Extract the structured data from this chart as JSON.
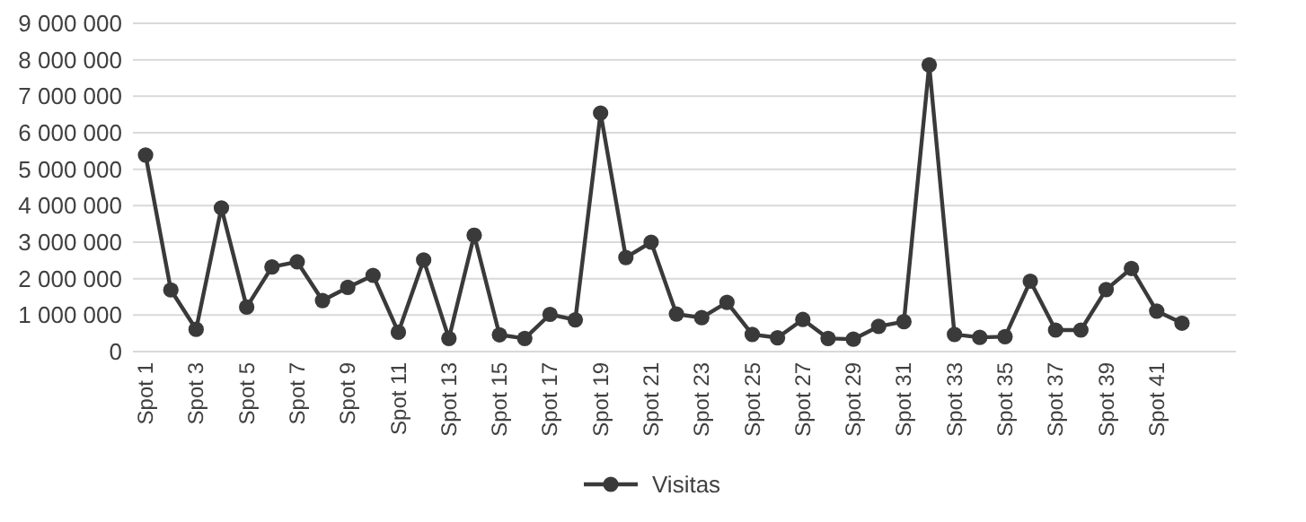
{
  "chart_data": {
    "type": "line",
    "categories": [
      "Spot 1",
      null,
      "Spot 3",
      null,
      "Spot 5",
      null,
      "Spot 7",
      null,
      "Spot 9",
      null,
      "Spot 11",
      null,
      "Spot 13",
      null,
      "Spot 15",
      null,
      "Spot 17",
      null,
      "Spot 19",
      null,
      "Spot 21",
      null,
      "Spot 23",
      null,
      "Spot 25",
      null,
      "Spot 27",
      null,
      "Spot 29",
      null,
      "Spot 31",
      null,
      "Spot 33",
      null,
      "Spot 35",
      null,
      "Spot 37",
      null,
      "Spot 39",
      null,
      "Spot 41",
      null
    ],
    "series": [
      {
        "name": "Visitas",
        "color": "#3a3a3a",
        "values": [
          5390000,
          1690000,
          610000,
          3940000,
          1220000,
          2320000,
          2460000,
          1400000,
          1760000,
          2090000,
          530000,
          2510000,
          360000,
          3190000,
          460000,
          360000,
          1020000,
          870000,
          6540000,
          2580000,
          3000000,
          1030000,
          930000,
          1350000,
          470000,
          380000,
          880000,
          360000,
          340000,
          690000,
          820000,
          7860000,
          470000,
          390000,
          410000,
          1930000,
          590000,
          590000,
          1700000,
          2280000,
          1110000,
          780000
        ]
      }
    ],
    "ylim": [
      0,
      9000000
    ],
    "yticks": [
      {
        "value": 0,
        "label": "0"
      },
      {
        "value": 1000000,
        "label": "1 000 000"
      },
      {
        "value": 2000000,
        "label": "2 000 000"
      },
      {
        "value": 3000000,
        "label": "3 000 000"
      },
      {
        "value": 4000000,
        "label": "4 000 000"
      },
      {
        "value": 5000000,
        "label": "5 000 000"
      },
      {
        "value": 6000000,
        "label": "6 000 000"
      },
      {
        "value": 7000000,
        "label": "7 000 000"
      },
      {
        "value": 8000000,
        "label": "8 000 000"
      },
      {
        "value": 9000000,
        "label": "9 000 000"
      }
    ],
    "grid": "y",
    "legend": "bottom",
    "marker": "circle",
    "line_style": "solid"
  }
}
